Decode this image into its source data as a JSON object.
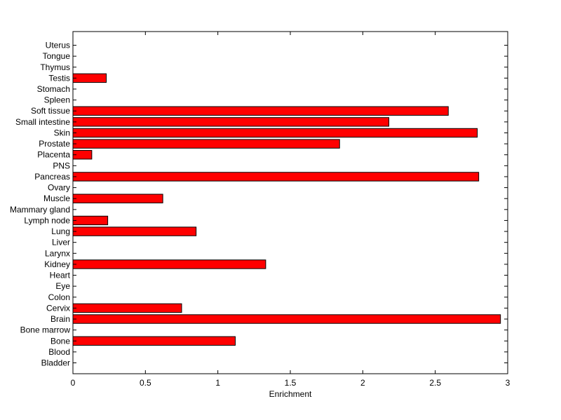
{
  "chart_data": {
    "type": "bar",
    "orientation": "horizontal",
    "title": "",
    "xlabel": "Enrichment",
    "ylabel": "",
    "xlim": [
      0,
      3
    ],
    "xticks": [
      0,
      0.5,
      1,
      1.5,
      2,
      2.5,
      3
    ],
    "xtick_labels": [
      "0",
      "0.5",
      "1",
      "1.5",
      "2",
      "2.5",
      "3"
    ],
    "grid": false,
    "bar_color": "#ff0000",
    "categories": [
      "Bladder",
      "Blood",
      "Bone",
      "Bone marrow",
      "Brain",
      "Cervix",
      "Colon",
      "Eye",
      "Heart",
      "Kidney",
      "Larynx",
      "Liver",
      "Lung",
      "Lymph node",
      "Mammary gland",
      "Muscle",
      "Ovary",
      "Pancreas",
      "PNS",
      "Placenta",
      "Prostate",
      "Skin",
      "Small intestine",
      "Soft tissue",
      "Spleen",
      "Stomach",
      "Testis",
      "Thymus",
      "Tongue",
      "Uterus"
    ],
    "values": [
      0,
      0,
      1.12,
      0,
      2.95,
      0.75,
      0,
      0,
      0,
      1.33,
      0,
      0,
      0.85,
      0.24,
      0,
      0.62,
      0,
      2.8,
      0,
      0.13,
      1.84,
      2.79,
      2.18,
      2.59,
      0,
      0,
      0.23,
      0,
      0,
      0
    ]
  }
}
